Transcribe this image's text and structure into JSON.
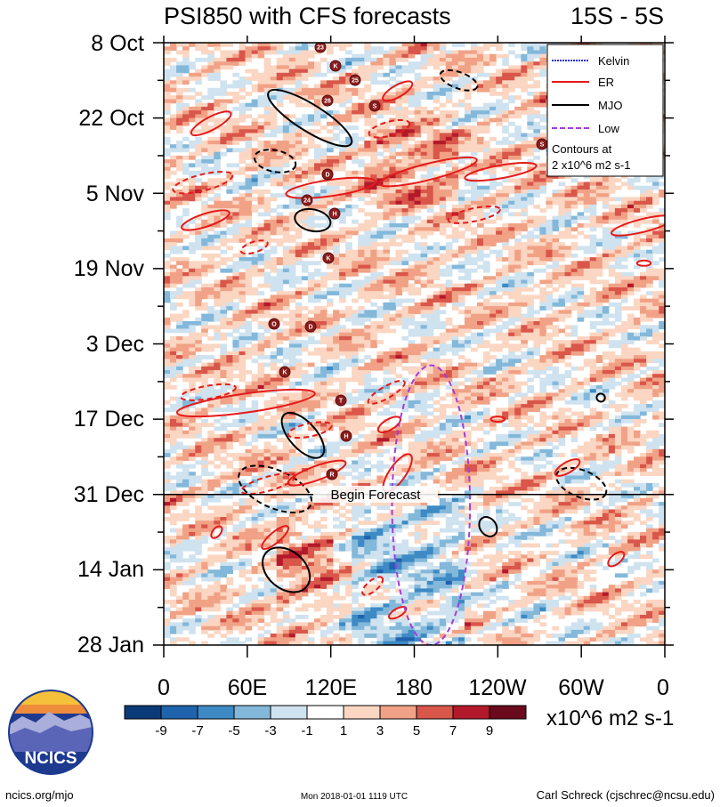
{
  "title_left": "PSI850 with CFS forecasts",
  "title_right": "15S - 5S",
  "chart_data": {
    "type": "heatmap",
    "title": "PSI850 with CFS forecasts",
    "latitude_band": "15S - 5S",
    "x_axis": {
      "ticks": [
        "0",
        "60E",
        "120E",
        "180",
        "120W",
        "60W",
        "0"
      ],
      "range_deg_east": [
        0,
        360
      ]
    },
    "y_axis": {
      "ticks": [
        "8 Oct",
        "22 Oct",
        "5 Nov",
        "19 Nov",
        "3 Dec",
        "17 Dec",
        "31 Dec",
        "14 Jan",
        "28 Jan"
      ],
      "range_days_from_8_Oct": [
        0,
        112
      ]
    },
    "forecast_marker": {
      "label": "Begin Forecast",
      "day": 84
    },
    "legend": [
      {
        "name": "Kelvin",
        "color": "#2a2ad8",
        "style": "dotted"
      },
      {
        "name": "ER",
        "color": "#e51a1a",
        "style": "solid"
      },
      {
        "name": "MJO",
        "color": "#000000",
        "style": "solid"
      },
      {
        "name": "Low",
        "color": "#a23ce0",
        "style": "dashed"
      }
    ],
    "contour_note_line1": "Contours at",
    "contour_note_line2": "2 x10^6 m2 s-1",
    "colorbar": {
      "labels": [
        "-9",
        "-7",
        "-5",
        "-3",
        "-1",
        "1",
        "3",
        "5",
        "7",
        "9"
      ],
      "colors": [
        "#0b3a78",
        "#1f63ad",
        "#3d8ac4",
        "#83b8da",
        "#cfe2ef",
        "#ffffff",
        "#fbd6c2",
        "#f1a286",
        "#d9564a",
        "#b3192b",
        "#6b0a1c"
      ],
      "units": "x10^6 m2 s-1"
    },
    "storm_labels": [
      "23",
      "K",
      "25",
      "26",
      "S",
      "S",
      "D",
      "24",
      "H",
      "K",
      "O",
      "D",
      "K",
      "T",
      "H",
      "R"
    ],
    "series": [
      {
        "name": "MJO",
        "contours": [
          {
            "lon": 105,
            "day": 14,
            "len_deg": 70,
            "width_days": 5,
            "rot": 32,
            "dashed": false
          },
          {
            "lon": 107,
            "day": 33,
            "len_deg": 26,
            "width_days": 4,
            "rot": 12,
            "dashed": false
          },
          {
            "lon": 80,
            "day": 22,
            "len_deg": 30,
            "width_days": 4,
            "rot": 12,
            "dashed": true
          },
          {
            "lon": 100,
            "day": 73,
            "len_deg": 40,
            "width_days": 5,
            "rot": 48,
            "dashed": false
          },
          {
            "lon": 80,
            "day": 83,
            "len_deg": 56,
            "width_days": 7,
            "rot": 24,
            "dashed": true
          },
          {
            "lon": 88,
            "day": 98,
            "len_deg": 38,
            "width_days": 7,
            "rot": 40,
            "dashed": false
          },
          {
            "lon": 233,
            "day": 90,
            "len_deg": 15,
            "width_days": 3,
            "rot": 55,
            "dashed": false
          },
          {
            "lon": 300,
            "day": 82,
            "len_deg": 38,
            "width_days": 5,
            "rot": 22,
            "dashed": true
          },
          {
            "lon": 212,
            "day": 7,
            "len_deg": 28,
            "width_days": 3,
            "rot": 20,
            "dashed": true
          },
          {
            "lon": 314,
            "day": 66,
            "len_deg": 6,
            "width_days": 1.5,
            "rot": 30,
            "dashed": false
          }
        ]
      },
      {
        "name": "ER",
        "contours": [
          {
            "lon": 120,
            "day": 27,
            "len_deg": 65,
            "width_days": 3,
            "rot": -8,
            "dashed": false
          },
          {
            "lon": 190,
            "day": 24,
            "len_deg": 72,
            "width_days": 3,
            "rot": -14,
            "dashed": false
          },
          {
            "lon": 242,
            "day": 24,
            "len_deg": 52,
            "width_days": 2.4,
            "rot": -10,
            "dashed": false
          },
          {
            "lon": 162,
            "day": 16,
            "len_deg": 30,
            "width_days": 2.6,
            "rot": -15,
            "dashed": true
          },
          {
            "lon": 168,
            "day": 9,
            "len_deg": 24,
            "width_days": 2.2,
            "rot": -30,
            "dashed": false
          },
          {
            "lon": 28,
            "day": 26,
            "len_deg": 44,
            "width_days": 3,
            "rot": -14,
            "dashed": true
          },
          {
            "lon": 34,
            "day": 15,
            "len_deg": 32,
            "width_days": 2.4,
            "rot": -28,
            "dashed": false
          },
          {
            "lon": 30,
            "day": 33,
            "len_deg": 36,
            "width_days": 2.4,
            "rot": -18,
            "dashed": false
          },
          {
            "lon": 65,
            "day": 38,
            "len_deg": 20,
            "width_days": 2,
            "rot": -18,
            "dashed": true
          },
          {
            "lon": 223,
            "day": 32,
            "len_deg": 38,
            "width_days": 2.4,
            "rot": -12,
            "dashed": true
          },
          {
            "lon": 344,
            "day": 34,
            "len_deg": 46,
            "width_days": 2.4,
            "rot": -14,
            "dashed": false
          },
          {
            "lon": 59,
            "day": 67,
            "len_deg": 100,
            "width_days": 3.5,
            "rot": -8,
            "dashed": false
          },
          {
            "lon": 32,
            "day": 65,
            "len_deg": 40,
            "width_days": 2.4,
            "rot": -10,
            "dashed": true
          },
          {
            "lon": 105,
            "day": 72,
            "len_deg": 32,
            "width_days": 2.4,
            "rot": -12,
            "dashed": true
          },
          {
            "lon": 160,
            "day": 65,
            "len_deg": 30,
            "width_days": 2.2,
            "rot": -30,
            "dashed": true
          },
          {
            "lon": 162,
            "day": 71,
            "len_deg": 18,
            "width_days": 2,
            "rot": -30,
            "dashed": false
          },
          {
            "lon": 75,
            "day": 82,
            "len_deg": 40,
            "width_days": 2.6,
            "rot": -16,
            "dashed": true
          },
          {
            "lon": 110,
            "day": 80,
            "len_deg": 44,
            "width_days": 2.6,
            "rot": -20,
            "dashed": false
          },
          {
            "lon": 168,
            "day": 80,
            "len_deg": 32,
            "width_days": 3,
            "rot": -55,
            "dashed": false
          },
          {
            "lon": 80,
            "day": 92,
            "len_deg": 24,
            "width_days": 2,
            "rot": -40,
            "dashed": false
          },
          {
            "lon": 38,
            "day": 91,
            "len_deg": 10,
            "width_days": 1.5,
            "rot": -50,
            "dashed": false
          },
          {
            "lon": 150,
            "day": 101,
            "len_deg": 18,
            "width_days": 2,
            "rot": -40,
            "dashed": true
          },
          {
            "lon": 168,
            "day": 106,
            "len_deg": 14,
            "width_days": 1.5,
            "rot": -30,
            "dashed": false
          },
          {
            "lon": 290,
            "day": 79,
            "len_deg": 20,
            "width_days": 2,
            "rot": -30,
            "dashed": false
          },
          {
            "lon": 325,
            "day": 96,
            "len_deg": 14,
            "width_days": 1.8,
            "rot": -40,
            "dashed": false
          },
          {
            "lon": 345,
            "day": 41,
            "len_deg": 10,
            "width_days": 1,
            "rot": 0,
            "dashed": false
          },
          {
            "lon": 240,
            "day": 70,
            "len_deg": 10,
            "width_days": 1,
            "rot": 0,
            "dashed": false
          }
        ]
      },
      {
        "name": "Low",
        "contours": [
          {
            "lon": 192,
            "day": 86,
            "len_deg": 56,
            "width_days": 52,
            "rot": 0,
            "dashed": true
          }
        ]
      }
    ]
  },
  "footer": {
    "url": "ncics.org/mjo",
    "timestamp": "Mon 2018-01-01 1119 UTC",
    "author": "Carl Schreck (cjschrec@ncsu.edu)",
    "logo_text": "NCICS"
  }
}
